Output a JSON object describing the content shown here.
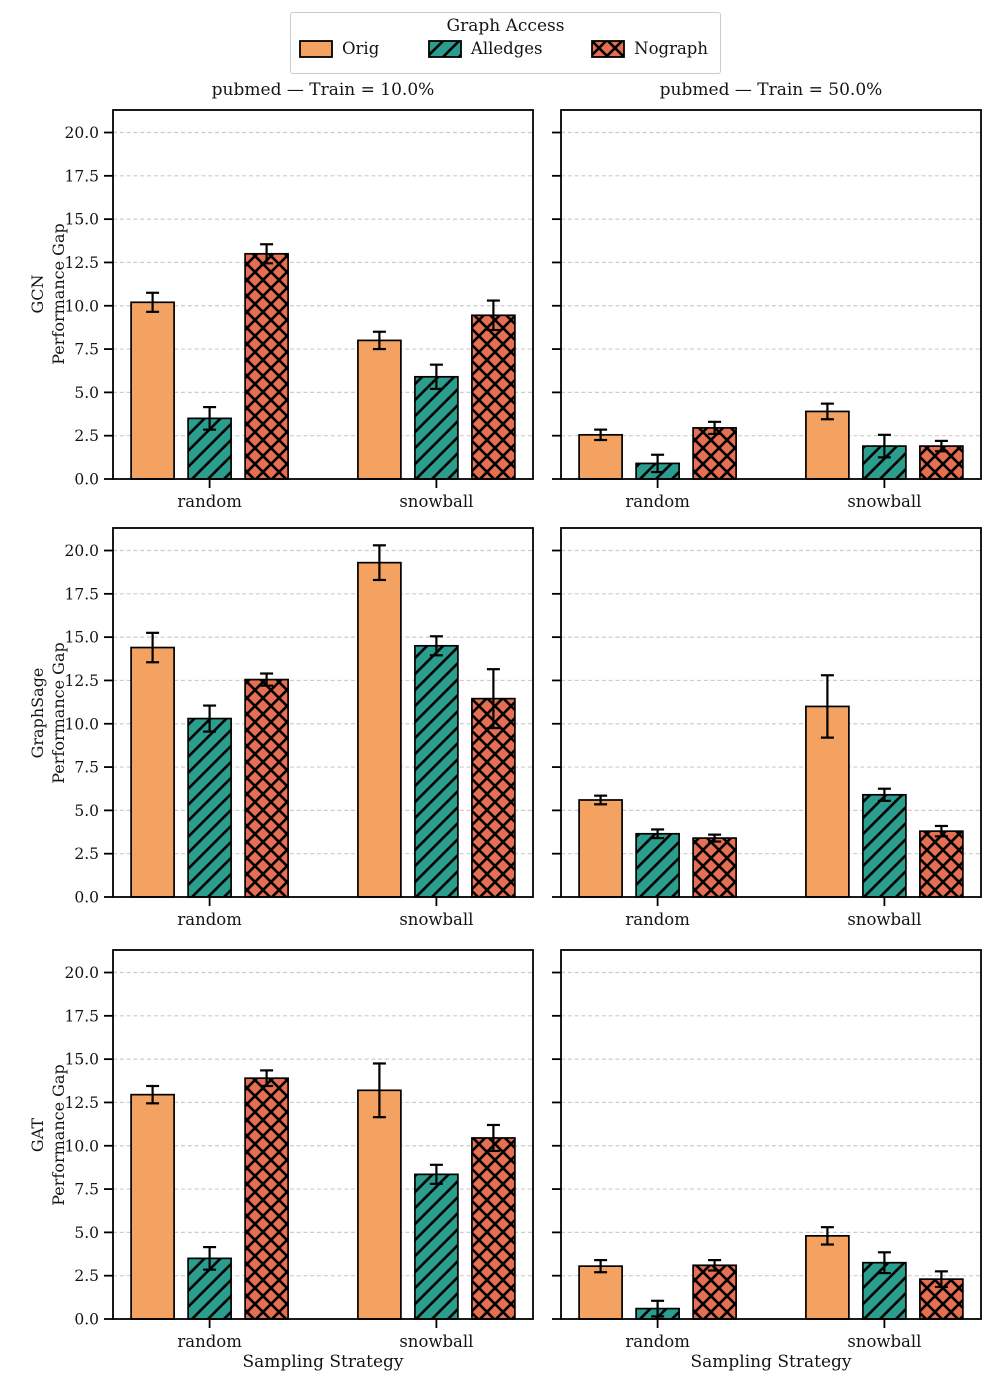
{
  "figure": {
    "legend": {
      "title": "Graph Access",
      "entries": [
        {
          "label": "Orig",
          "color": "#F4A261",
          "hatch": "none"
        },
        {
          "label": "Alledges",
          "color": "#2A9D8F",
          "hatch": "diag"
        },
        {
          "label": "Nograph",
          "color": "#E76F51",
          "hatch": "cross"
        }
      ]
    },
    "col_titles": [
      "pubmed — Train = 10.0%",
      "pubmed — Train = 50.0%"
    ],
    "xlabel": "Sampling Strategy",
    "axis": {
      "ylim": [
        0,
        21.3
      ],
      "yticks": [
        "0.0",
        "2.5",
        "5.0",
        "7.5",
        "10.0",
        "12.5",
        "15.0",
        "17.5",
        "20.0"
      ],
      "grid_color": "#cccccc",
      "spine_color": "#000000",
      "text_color": "#141414",
      "grid_on": true,
      "legend_position": "top-center"
    }
  },
  "chart_data": [
    {
      "id": "gcn-train10",
      "type": "bar",
      "model": "GCN",
      "train": "10.0%",
      "title": "pubmed — Train = 10.0%",
      "row_label": [
        "GCN",
        "Performance Gap"
      ],
      "categories": [
        "random",
        "snowball"
      ],
      "series": [
        {
          "name": "Orig",
          "values": [
            10.2,
            8.0
          ],
          "errors": [
            0.55,
            0.5
          ]
        },
        {
          "name": "Alledges",
          "values": [
            3.5,
            5.9
          ],
          "errors": [
            0.65,
            0.7
          ]
        },
        {
          "name": "Nograph",
          "values": [
            13.0,
            9.45
          ],
          "errors": [
            0.55,
            0.85
          ]
        }
      ]
    },
    {
      "id": "gcn-train50",
      "type": "bar",
      "model": "GCN",
      "train": "50.0%",
      "title": "pubmed — Train = 50.0%",
      "row_label": [
        "GCN",
        "Performance Gap"
      ],
      "categories": [
        "random",
        "snowball"
      ],
      "series": [
        {
          "name": "Orig",
          "values": [
            2.55,
            3.9
          ],
          "errors": [
            0.3,
            0.45
          ]
        },
        {
          "name": "Alledges",
          "values": [
            0.9,
            1.9
          ],
          "errors": [
            0.5,
            0.65
          ]
        },
        {
          "name": "Nograph",
          "values": [
            2.95,
            1.9
          ],
          "errors": [
            0.35,
            0.3
          ]
        }
      ]
    },
    {
      "id": "graphsage-train10",
      "type": "bar",
      "model": "GraphSage",
      "train": "10.0%",
      "title": "pubmed — Train = 10.0%",
      "row_label": [
        "GraphSage",
        "Performance Gap"
      ],
      "categories": [
        "random",
        "snowball"
      ],
      "series": [
        {
          "name": "Orig",
          "values": [
            14.4,
            19.3
          ],
          "errors": [
            0.85,
            1.0
          ]
        },
        {
          "name": "Alledges",
          "values": [
            10.3,
            14.5
          ],
          "errors": [
            0.75,
            0.55
          ]
        },
        {
          "name": "Nograph",
          "values": [
            12.55,
            11.45
          ],
          "errors": [
            0.35,
            1.7
          ]
        }
      ]
    },
    {
      "id": "graphsage-train50",
      "type": "bar",
      "model": "GraphSage",
      "train": "50.0%",
      "title": "pubmed — Train = 50.0%",
      "row_label": [
        "GraphSage",
        "Performance Gap"
      ],
      "categories": [
        "random",
        "snowball"
      ],
      "series": [
        {
          "name": "Orig",
          "values": [
            5.6,
            11.0
          ],
          "errors": [
            0.25,
            1.8
          ]
        },
        {
          "name": "Alledges",
          "values": [
            3.65,
            5.9
          ],
          "errors": [
            0.25,
            0.35
          ]
        },
        {
          "name": "Nograph",
          "values": [
            3.4,
            3.8
          ],
          "errors": [
            0.2,
            0.3
          ]
        }
      ]
    },
    {
      "id": "gat-train10",
      "type": "bar",
      "model": "GAT",
      "train": "10.0%",
      "title": "pubmed — Train = 10.0%",
      "row_label": [
        "GAT",
        "Performance Gap"
      ],
      "categories": [
        "random",
        "snowball"
      ],
      "series": [
        {
          "name": "Orig",
          "values": [
            12.95,
            13.2
          ],
          "errors": [
            0.5,
            1.55
          ]
        },
        {
          "name": "Alledges",
          "values": [
            3.5,
            8.35
          ],
          "errors": [
            0.65,
            0.55
          ]
        },
        {
          "name": "Nograph",
          "values": [
            13.9,
            10.45
          ],
          "errors": [
            0.45,
            0.75
          ]
        }
      ]
    },
    {
      "id": "gat-train50",
      "type": "bar",
      "model": "GAT",
      "train": "50.0%",
      "title": "pubmed — Train = 50.0%",
      "row_label": [
        "GAT",
        "Performance Gap"
      ],
      "categories": [
        "random",
        "snowball"
      ],
      "series": [
        {
          "name": "Orig",
          "values": [
            3.05,
            4.8
          ],
          "errors": [
            0.35,
            0.5
          ]
        },
        {
          "name": "Alledges",
          "values": [
            0.6,
            3.25
          ],
          "errors": [
            0.45,
            0.6
          ]
        },
        {
          "name": "Nograph",
          "values": [
            3.1,
            2.3
          ],
          "errors": [
            0.3,
            0.45
          ]
        }
      ]
    }
  ]
}
